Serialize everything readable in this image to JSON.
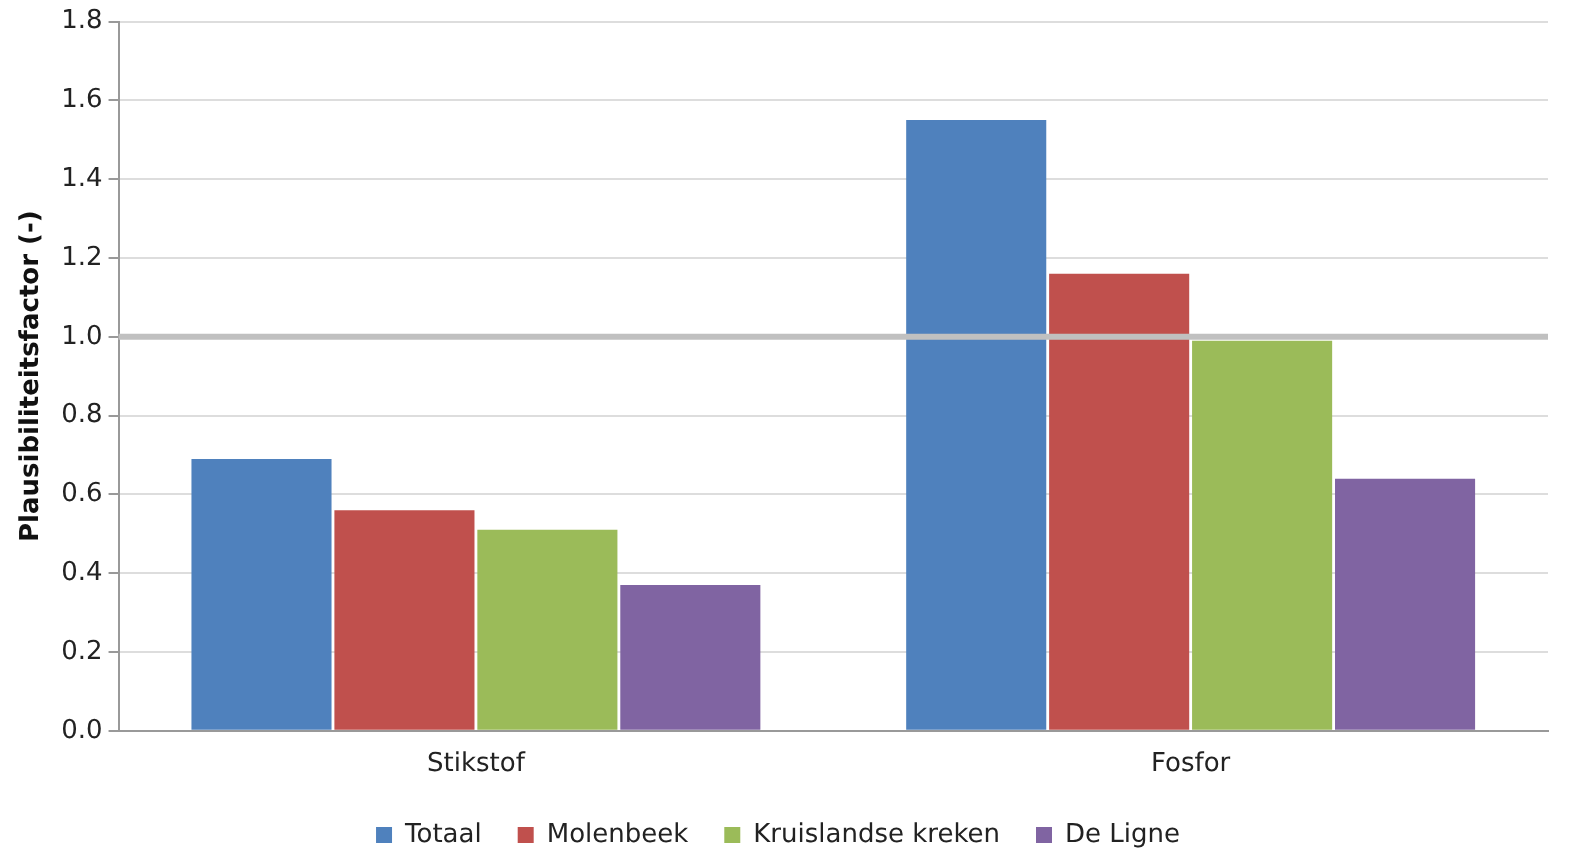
{
  "chart_data": {
    "type": "bar",
    "ylabel": "Plausibiliteitsfactor (-)",
    "categories": [
      "Stikstof",
      "Fosfor"
    ],
    "series": [
      {
        "name": "Totaal",
        "color": "#4f81bd",
        "values": [
          0.69,
          1.55
        ]
      },
      {
        "name": "Molenbeek",
        "color": "#c0504d",
        "values": [
          0.56,
          1.16
        ]
      },
      {
        "name": "Kruislandse kreken",
        "color": "#9bbb59",
        "values": [
          0.51,
          0.99
        ]
      },
      {
        "name": "De Ligne",
        "color": "#8064a2",
        "values": [
          0.37,
          0.64
        ]
      }
    ],
    "ylim": [
      0,
      1.8
    ],
    "yticks": [
      {
        "value": 0,
        "label": "0.0"
      },
      {
        "value": 0.2,
        "label": "0.2"
      },
      {
        "value": 0.4,
        "label": "0.4"
      },
      {
        "value": 0.6,
        "label": "0.6"
      },
      {
        "value": 0.8,
        "label": "0.8"
      },
      {
        "value": 1,
        "label": "1.0"
      },
      {
        "value": 1.2,
        "label": "1.2"
      },
      {
        "value": 1.4,
        "label": "1.4"
      },
      {
        "value": 1.6,
        "label": "1.6"
      },
      {
        "value": 1.8,
        "label": "1.8"
      }
    ],
    "ref_lines": [
      {
        "axis": "y",
        "value": 1,
        "color": "#c0c0c0"
      }
    ],
    "grid": "y",
    "legend": "bottom"
  }
}
